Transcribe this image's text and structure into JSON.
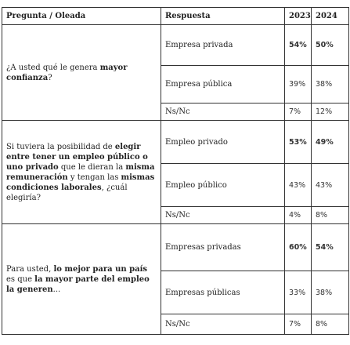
{
  "table": {
    "header": [
      "Pregunta / Oleada",
      "Respuesta",
      "2023",
      "2024"
    ],
    "groups": [
      {
        "question": [
          "¿A usted qué le genera ",
          "mayor confianza",
          "?"
        ],
        "rows": [
          [
            "Empresa privada",
            "54%",
            "50%"
          ],
          [
            "Empresa pública",
            "39%",
            "38%"
          ],
          [
            "Ns/Nc",
            "7%",
            "12%"
          ]
        ]
      },
      {
        "question": [
          "Si tuviera la posibilidad de ",
          "elegir entre tener un empleo público o uno privado",
          " que le dieran la ",
          "misma remuneración",
          " y tengan las ",
          "mismas condiciones laborales",
          ", ¿cuál elegiría?"
        ],
        "rows": [
          [
            "Empleo privado",
            "53%",
            "49%"
          ],
          [
            "Empleo público",
            "43%",
            "43%"
          ],
          [
            "Ns/Nc",
            "4%",
            "8%"
          ]
        ]
      },
      {
        "question": [
          "Para usted, ",
          "lo mejor para un país",
          " es que ",
          "la mayor parte del empleo la generen",
          "..."
        ],
        "rows": [
          [
            "Empresas privadas",
            "60%",
            "54%"
          ],
          [
            "Empresas públicas",
            "33%",
            "38%"
          ],
          [
            "Ns/Nc",
            "7%",
            "8%"
          ]
        ]
      }
    ]
  }
}
